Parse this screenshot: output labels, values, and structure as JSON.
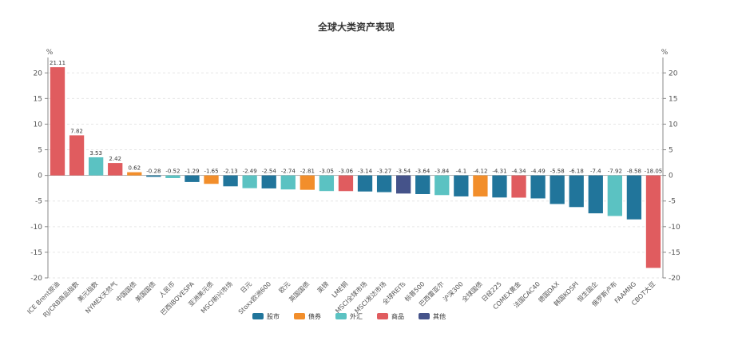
{
  "chart_data": {
    "type": "bar",
    "title": "全球大类资产表现",
    "yunit_left": "%",
    "yunit_right": "%",
    "ylim": [
      -20,
      23
    ],
    "yticks": [
      -20,
      -15,
      -10,
      -5,
      0,
      5,
      10,
      15,
      20
    ],
    "legend_position": "bottom-center",
    "colors": {
      "股市": "#21759b",
      "债券": "#f28e2b",
      "外汇": "#5bc2c2",
      "商品": "#e05c5f",
      "其他": "#45538a"
    },
    "legend": [
      {
        "name": "股市"
      },
      {
        "name": "债券"
      },
      {
        "name": "外汇"
      },
      {
        "name": "商品"
      },
      {
        "name": "其他"
      }
    ],
    "categories": [
      "ICE Brent原油",
      "RJ/CRB商品指数",
      "美元指数",
      "NYMEX天然气",
      "中国国债",
      "美国国债",
      "人民币",
      "巴西IBOVESPA",
      "亚洲美元债",
      "MSCI新兴市场",
      "日元",
      "Stoxx欧洲600",
      "欧元",
      "英国国债",
      "英镑",
      "LME铜",
      "MSCI全球市场",
      "MSCI发达市场",
      "全球REITs",
      "标普500",
      "巴西雷亚尔",
      "沪深300",
      "全球国债",
      "日经225",
      "COMEX黄金",
      "法国CAC40",
      "德国DAX",
      "韩国KOSPI",
      "恒生国企",
      "俄罗斯卢布",
      "FAAMNG",
      "CBOT大豆"
    ],
    "values": [
      21.11,
      7.82,
      3.53,
      2.42,
      0.62,
      -0.28,
      -0.52,
      -1.29,
      -1.65,
      -2.13,
      -2.49,
      -2.54,
      -2.74,
      -2.81,
      -3.05,
      -3.06,
      -3.14,
      -3.27,
      -3.54,
      -3.64,
      -3.84,
      -4.1,
      -4.12,
      -4.31,
      -4.34,
      -4.49,
      -5.58,
      -6.18,
      -7.4,
      -7.92,
      -8.58,
      -18.05
    ],
    "value_labels": [
      "21.11",
      "7.82",
      "3.53",
      "2.42",
      "0.62",
      "-0.28",
      "-0.52",
      "-1.29",
      "-1.65",
      "-2.13",
      "-2.49",
      "-2.54",
      "-2.74",
      "-2.81",
      "-3.05",
      "-3.06",
      "-3.14",
      "-3.27",
      "-3.54",
      "-3.64",
      "-3.84",
      "-4.1",
      "-4.12",
      "-4.31",
      "-4.34",
      "-4.49",
      "-5.58",
      "-6.18",
      "-7.4",
      "-7.92",
      "-8.58",
      "-18.05"
    ],
    "groups": [
      "商品",
      "商品",
      "外汇",
      "商品",
      "债券",
      "股市",
      "外汇",
      "股市",
      "债券",
      "股市",
      "外汇",
      "股市",
      "外汇",
      "债券",
      "外汇",
      "商品",
      "股市",
      "股市",
      "其他",
      "股市",
      "外汇",
      "股市",
      "债券",
      "股市",
      "商品",
      "股市",
      "股市",
      "股市",
      "股市",
      "外汇",
      "股市",
      "商品"
    ]
  }
}
